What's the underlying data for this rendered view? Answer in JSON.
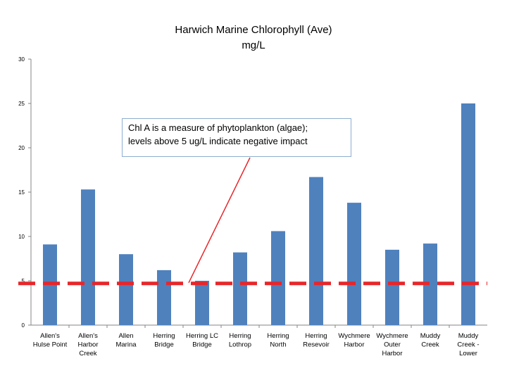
{
  "chart_data": {
    "type": "bar",
    "title": "Harwich Marine Chlorophyll (Ave)\nmg/L",
    "xlabel": "",
    "ylabel": "",
    "ylim": [
      0,
      30
    ],
    "yticks": [
      0,
      5,
      10,
      15,
      20,
      25,
      30
    ],
    "categories": [
      "Allen's\nHulse Point",
      "Allen's\nHarbor\nCreek",
      "Allen\nMarina",
      "Herring\nBridge",
      "Herring LC\nBridge",
      "Herring\nLothrop",
      "Herring\nNorth",
      "Herring\nResevoir",
      "Wychmere\nHarbor",
      "Wychmere\nOuter\nHarbor",
      "Muddy\nCreek",
      "Muddy\nCreek -\nLower"
    ],
    "values": [
      9.1,
      15.3,
      8.0,
      6.2,
      5.0,
      8.2,
      10.6,
      16.7,
      13.8,
      8.5,
      9.2,
      25.0
    ],
    "grid": false,
    "bar_color": "#4f81bd",
    "threshold": {
      "value": 4.7,
      "color": "#e8262a",
      "style": "dashed"
    },
    "annotation": {
      "text": "Chl A is a measure of phytoplankton (algae);\nlevels above 5 ug/L indicate negative impact",
      "arrow_color": "#e8262a"
    }
  }
}
